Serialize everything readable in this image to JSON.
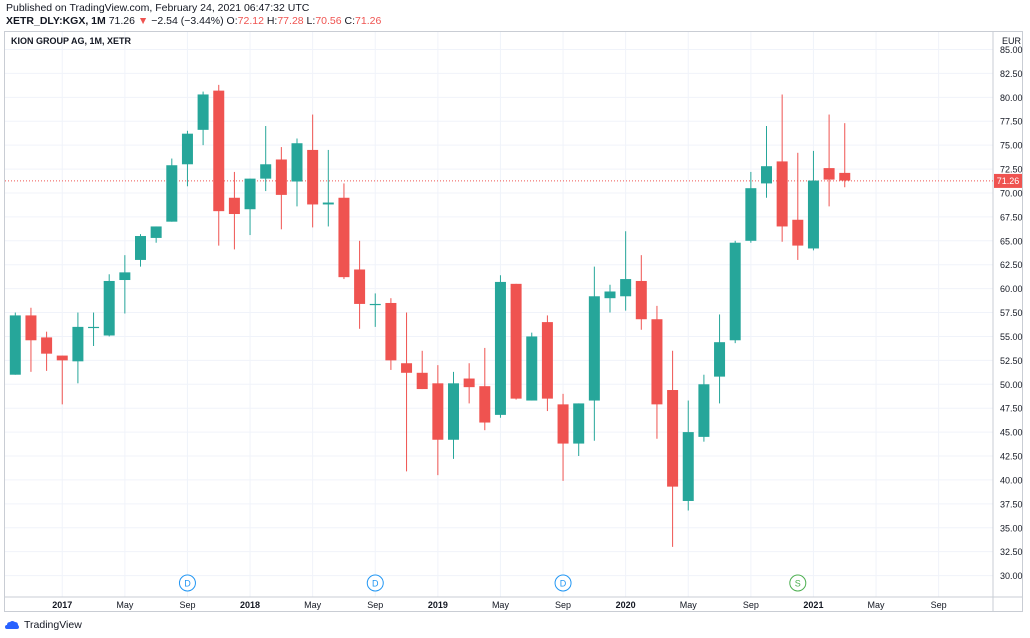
{
  "header": {
    "published": "Published on TradingView.com, February 24, 2021 06:47:32 UTC",
    "symbol": "XETR_DLY:KGX, 1M",
    "last": "71.26",
    "arrow": "▼",
    "change": "−2.54 (−3.44%)",
    "o_label": "O:",
    "o_value": "72.12",
    "h_label": "H:",
    "h_value": "77.28",
    "l_label": "L:",
    "l_value": "70.56",
    "c_label": "C:",
    "c_value": "71.26"
  },
  "chart_title": "KION GROUP AG, 1M, XETR",
  "footer": {
    "brand": "TradingView"
  },
  "colors": {
    "up": "#26a69a",
    "down": "#ef5350",
    "grid": "#f0f3fa",
    "axis_text": "#131722",
    "price_line": "#ef5350"
  },
  "chart_data": {
    "type": "candlestick",
    "currency": "EUR",
    "y_ticks": [
      30,
      32.5,
      35,
      37.5,
      40,
      42.5,
      45,
      47.5,
      50,
      52.5,
      55,
      57.5,
      60,
      62.5,
      65,
      67.5,
      70,
      72.5,
      75,
      77.5,
      80,
      82.5,
      85
    ],
    "ylim": [
      28.5,
      86.5
    ],
    "x_labels": [
      {
        "label": "2017",
        "bold": true,
        "month_index": 3
      },
      {
        "label": "May",
        "month_index": 7
      },
      {
        "label": "Sep",
        "month_index": 11
      },
      {
        "label": "2018",
        "bold": true,
        "month_index": 15
      },
      {
        "label": "May",
        "month_index": 19
      },
      {
        "label": "Sep",
        "month_index": 23
      },
      {
        "label": "2019",
        "bold": true,
        "month_index": 27
      },
      {
        "label": "May",
        "month_index": 31
      },
      {
        "label": "Sep",
        "month_index": 35
      },
      {
        "label": "2020",
        "bold": true,
        "month_index": 39
      },
      {
        "label": "May",
        "month_index": 43
      },
      {
        "label": "Sep",
        "month_index": 47
      },
      {
        "label": "2021",
        "bold": true,
        "month_index": 51
      },
      {
        "label": "May",
        "month_index": 55
      },
      {
        "label": "Sep",
        "month_index": 59
      }
    ],
    "last_price": 71.26,
    "markers": [
      {
        "label": "D",
        "month_index": 11,
        "color": "#2196f3"
      },
      {
        "label": "D",
        "month_index": 23,
        "color": "#2196f3"
      },
      {
        "label": "D",
        "month_index": 35,
        "color": "#2196f3"
      },
      {
        "label": "S",
        "month_index": 50,
        "color": "#4caf50"
      }
    ],
    "candles": [
      {
        "m": 0,
        "o": 51.0,
        "h": 57.5,
        "l": 51.0,
        "c": 57.2
      },
      {
        "m": 1,
        "o": 57.2,
        "h": 58.0,
        "l": 51.3,
        "c": 54.6
      },
      {
        "m": 2,
        "o": 54.9,
        "h": 55.5,
        "l": 51.4,
        "c": 53.2
      },
      {
        "m": 3,
        "o": 53.0,
        "h": 53.0,
        "l": 47.9,
        "c": 52.5
      },
      {
        "m": 4,
        "o": 52.4,
        "h": 57.5,
        "l": 50.1,
        "c": 56.0
      },
      {
        "m": 5,
        "o": 56.0,
        "h": 57.5,
        "l": 54.0,
        "c": 56.0
      },
      {
        "m": 6,
        "o": 55.1,
        "h": 61.5,
        "l": 55.0,
        "c": 60.8
      },
      {
        "m": 7,
        "o": 60.9,
        "h": 63.5,
        "l": 57.4,
        "c": 61.7
      },
      {
        "m": 8,
        "o": 63.0,
        "h": 65.7,
        "l": 62.3,
        "c": 65.5
      },
      {
        "m": 9,
        "o": 65.3,
        "h": 66.5,
        "l": 64.8,
        "c": 66.5
      },
      {
        "m": 10,
        "o": 67.0,
        "h": 73.6,
        "l": 67.0,
        "c": 72.9
      },
      {
        "m": 11,
        "o": 73.0,
        "h": 76.5,
        "l": 70.7,
        "c": 76.2
      },
      {
        "m": 12,
        "o": 76.6,
        "h": 80.6,
        "l": 75.0,
        "c": 80.3
      },
      {
        "m": 13,
        "o": 80.7,
        "h": 81.3,
        "l": 64.5,
        "c": 68.1
      },
      {
        "m": 14,
        "o": 69.5,
        "h": 72.2,
        "l": 64.1,
        "c": 67.8
      },
      {
        "m": 15,
        "o": 68.3,
        "h": 71.5,
        "l": 65.6,
        "c": 71.5
      },
      {
        "m": 16,
        "o": 71.5,
        "h": 77.0,
        "l": 70.2,
        "c": 73.0
      },
      {
        "m": 17,
        "o": 73.5,
        "h": 74.8,
        "l": 66.2,
        "c": 69.8
      },
      {
        "m": 18,
        "o": 71.2,
        "h": 75.7,
        "l": 68.6,
        "c": 75.2
      },
      {
        "m": 19,
        "o": 74.5,
        "h": 78.2,
        "l": 66.4,
        "c": 68.8
      },
      {
        "m": 20,
        "o": 68.8,
        "h": 74.5,
        "l": 66.5,
        "c": 69.0
      },
      {
        "m": 21,
        "o": 69.5,
        "h": 71.0,
        "l": 61.0,
        "c": 61.2
      },
      {
        "m": 22,
        "o": 62.0,
        "h": 65.0,
        "l": 55.8,
        "c": 58.4
      },
      {
        "m": 23,
        "o": 58.3,
        "h": 59.5,
        "l": 56.0,
        "c": 58.4
      },
      {
        "m": 24,
        "o": 58.5,
        "h": 59.0,
        "l": 51.5,
        "c": 52.5
      },
      {
        "m": 25,
        "o": 52.2,
        "h": 57.5,
        "l": 40.9,
        "c": 51.2
      },
      {
        "m": 26,
        "o": 51.2,
        "h": 53.5,
        "l": 49.5,
        "c": 49.5
      },
      {
        "m": 27,
        "o": 50.1,
        "h": 52.0,
        "l": 40.5,
        "c": 44.2
      },
      {
        "m": 28,
        "o": 44.2,
        "h": 51.3,
        "l": 42.2,
        "c": 50.1
      },
      {
        "m": 29,
        "o": 50.6,
        "h": 52.2,
        "l": 48.0,
        "c": 49.7
      },
      {
        "m": 30,
        "o": 49.8,
        "h": 53.8,
        "l": 45.2,
        "c": 46.0
      },
      {
        "m": 31,
        "o": 46.8,
        "h": 61.4,
        "l": 46.5,
        "c": 60.7
      },
      {
        "m": 32,
        "o": 60.5,
        "h": 60.5,
        "l": 48.4,
        "c": 48.5
      },
      {
        "m": 33,
        "o": 48.3,
        "h": 55.4,
        "l": 48.3,
        "c": 55.0
      },
      {
        "m": 34,
        "o": 56.5,
        "h": 57.2,
        "l": 47.2,
        "c": 48.5
      },
      {
        "m": 35,
        "o": 47.9,
        "h": 49.0,
        "l": 39.9,
        "c": 43.8
      },
      {
        "m": 36,
        "o": 43.8,
        "h": 48.0,
        "l": 42.5,
        "c": 48.0
      },
      {
        "m": 37,
        "o": 48.3,
        "h": 62.3,
        "l": 44.1,
        "c": 59.2
      },
      {
        "m": 38,
        "o": 59.0,
        "h": 60.4,
        "l": 57.5,
        "c": 59.7
      },
      {
        "m": 39,
        "o": 59.2,
        "h": 66.0,
        "l": 57.7,
        "c": 61.0
      },
      {
        "m": 40,
        "o": 60.8,
        "h": 63.5,
        "l": 55.7,
        "c": 56.8
      },
      {
        "m": 41,
        "o": 56.8,
        "h": 58.2,
        "l": 44.3,
        "c": 47.9
      },
      {
        "m": 42,
        "o": 49.4,
        "h": 53.5,
        "l": 33.0,
        "c": 39.3
      },
      {
        "m": 43,
        "o": 37.8,
        "h": 48.3,
        "l": 36.8,
        "c": 45.0
      },
      {
        "m": 44,
        "o": 44.5,
        "h": 51.0,
        "l": 44.0,
        "c": 50.0
      },
      {
        "m": 45,
        "o": 50.8,
        "h": 57.3,
        "l": 48.0,
        "c": 54.4
      },
      {
        "m": 46,
        "o": 54.6,
        "h": 65.0,
        "l": 54.3,
        "c": 64.8
      },
      {
        "m": 47,
        "o": 65.0,
        "h": 72.2,
        "l": 64.8,
        "c": 70.5
      },
      {
        "m": 48,
        "o": 71.0,
        "h": 77.0,
        "l": 69.5,
        "c": 72.8
      },
      {
        "m": 49,
        "o": 73.3,
        "h": 80.3,
        "l": 64.9,
        "c": 66.5
      },
      {
        "m": 50,
        "o": 67.2,
        "h": 74.2,
        "l": 63.0,
        "c": 64.5
      },
      {
        "m": 51,
        "o": 64.2,
        "h": 74.4,
        "l": 64.0,
        "c": 71.3
      },
      {
        "m": 52,
        "o": 72.6,
        "h": 78.2,
        "l": 68.6,
        "c": 71.4
      },
      {
        "m": 53,
        "o": 72.1,
        "h": 77.3,
        "l": 70.6,
        "c": 71.3
      }
    ]
  }
}
